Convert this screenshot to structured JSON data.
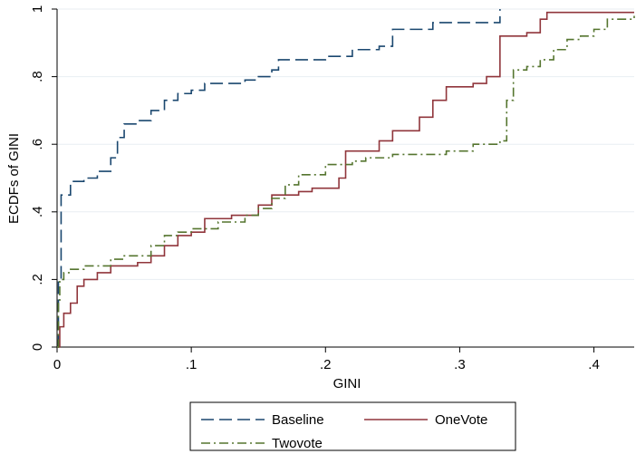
{
  "chart_data": {
    "type": "step",
    "x_label": "GINI",
    "y_label": "ECDFs of GINI",
    "xlim": [
      0,
      0.43
    ],
    "ylim": [
      0,
      1
    ],
    "xticks": [
      0,
      {
        "value": 0.1,
        "label": ".1"
      },
      {
        "value": 0.2,
        "label": ".2"
      },
      {
        "value": 0.3,
        "label": ".3"
      },
      {
        "value": 0.4,
        "label": ".4"
      }
    ],
    "yticks": [
      0,
      {
        "value": 0.2,
        "label": ".2"
      },
      {
        "value": 0.4,
        "label": ".4"
      },
      {
        "value": 0.6,
        "label": ".6"
      },
      {
        "value": 0.8,
        "label": ".8"
      },
      1
    ],
    "grid": true,
    "series": [
      {
        "name": "Baseline",
        "color": "#1a476f",
        "dash": "14 6",
        "x": [
          0,
          0.001,
          0.003,
          0.01,
          0.02,
          0.03,
          0.04,
          0.045,
          0.05,
          0.06,
          0.07,
          0.08,
          0.09,
          0.1,
          0.11,
          0.14,
          0.15,
          0.16,
          0.165,
          0.2,
          0.22,
          0.24,
          0.25,
          0.28,
          0.33
        ],
        "values": [
          0,
          0.2,
          0.45,
          0.49,
          0.5,
          0.52,
          0.56,
          0.62,
          0.66,
          0.67,
          0.7,
          0.73,
          0.75,
          0.76,
          0.78,
          0.79,
          0.8,
          0.82,
          0.85,
          0.86,
          0.88,
          0.89,
          0.94,
          0.96,
          1
        ]
      },
      {
        "name": "OneVote",
        "color": "#90353b",
        "dash": "none",
        "x": [
          0,
          0.002,
          0.005,
          0.01,
          0.015,
          0.02,
          0.03,
          0.04,
          0.06,
          0.07,
          0.08,
          0.09,
          0.1,
          0.11,
          0.13,
          0.15,
          0.16,
          0.18,
          0.19,
          0.21,
          0.215,
          0.24,
          0.25,
          0.27,
          0.28,
          0.29,
          0.31,
          0.32,
          0.33,
          0.35,
          0.36,
          0.365,
          0.43
        ],
        "values": [
          0,
          0.06,
          0.1,
          0.13,
          0.18,
          0.2,
          0.22,
          0.24,
          0.25,
          0.27,
          0.3,
          0.33,
          0.34,
          0.38,
          0.39,
          0.42,
          0.45,
          0.46,
          0.47,
          0.5,
          0.58,
          0.61,
          0.64,
          0.68,
          0.73,
          0.77,
          0.78,
          0.8,
          0.92,
          0.93,
          0.97,
          0.99,
          0.99
        ]
      },
      {
        "name": "Twovote",
        "color": "#55752f",
        "dash": "10 4 2 4",
        "x": [
          0,
          0.001,
          0.002,
          0.005,
          0.01,
          0.02,
          0.04,
          0.05,
          0.07,
          0.08,
          0.09,
          0.1,
          0.12,
          0.14,
          0.15,
          0.16,
          0.17,
          0.18,
          0.2,
          0.22,
          0.23,
          0.25,
          0.29,
          0.31,
          0.33,
          0.335,
          0.34,
          0.35,
          0.36,
          0.37,
          0.38,
          0.39,
          0.4,
          0.41,
          0.43
        ],
        "values": [
          0,
          0.13,
          0.2,
          0.22,
          0.23,
          0.24,
          0.26,
          0.27,
          0.3,
          0.33,
          0.34,
          0.35,
          0.37,
          0.39,
          0.41,
          0.44,
          0.48,
          0.51,
          0.54,
          0.55,
          0.56,
          0.57,
          0.58,
          0.6,
          0.61,
          0.73,
          0.82,
          0.83,
          0.85,
          0.88,
          0.91,
          0.92,
          0.94,
          0.97,
          0.98
        ]
      }
    ]
  }
}
